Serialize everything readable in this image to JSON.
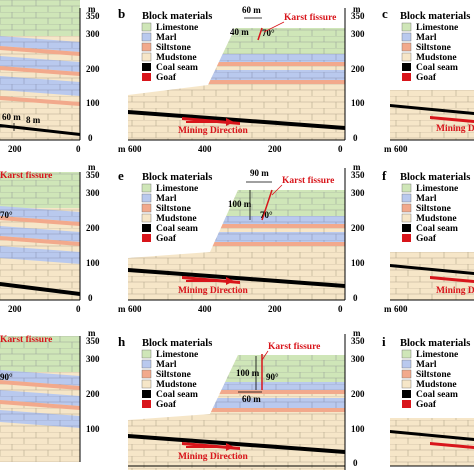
{
  "colors": {
    "limestone": "#cfe6b8",
    "marl": "#b9c9ee",
    "siltstone": "#f2a98c",
    "mudstone": "#f6e6c8",
    "coal_seam": "#000000",
    "goaf": "#d8151b",
    "brick_line": "#9aa29a"
  },
  "legend": {
    "title": "Block materials",
    "items": [
      "Limestone",
      "Marl",
      "Siltstone",
      "Mudstone",
      "Coal seam",
      "Goaf"
    ]
  },
  "panels": {
    "b": "b",
    "c": "c",
    "e": "e",
    "f": "f",
    "h": "h",
    "i": "i"
  },
  "axis": {
    "unit": "m",
    "y_ticks": [
      "350",
      "300",
      "200",
      "100",
      "0"
    ],
    "x_ticks_full": [
      "600",
      "400",
      "200",
      "0"
    ],
    "x_ticks_left": [
      "200",
      "0"
    ],
    "x_unit_prefix": "m",
    "c_x_tick": "600"
  },
  "annotations": {
    "karst_fissure": "Karst fissure",
    "mining_direction": "Mining Direction",
    "b_width": "60 m",
    "b_depth": "40 m",
    "b_angle": "70°",
    "e_width": "90 m",
    "e_depth": "100 m",
    "e_angle": "70°",
    "h_width": "60 m",
    "h_depth": "100 m",
    "h_angle": "90°",
    "a_len1": "60 m",
    "a_len2": "8 m",
    "a_angle_d": "70°",
    "a_angle_g": "90°",
    "c_mining_partial": "Mining Dir"
  }
}
